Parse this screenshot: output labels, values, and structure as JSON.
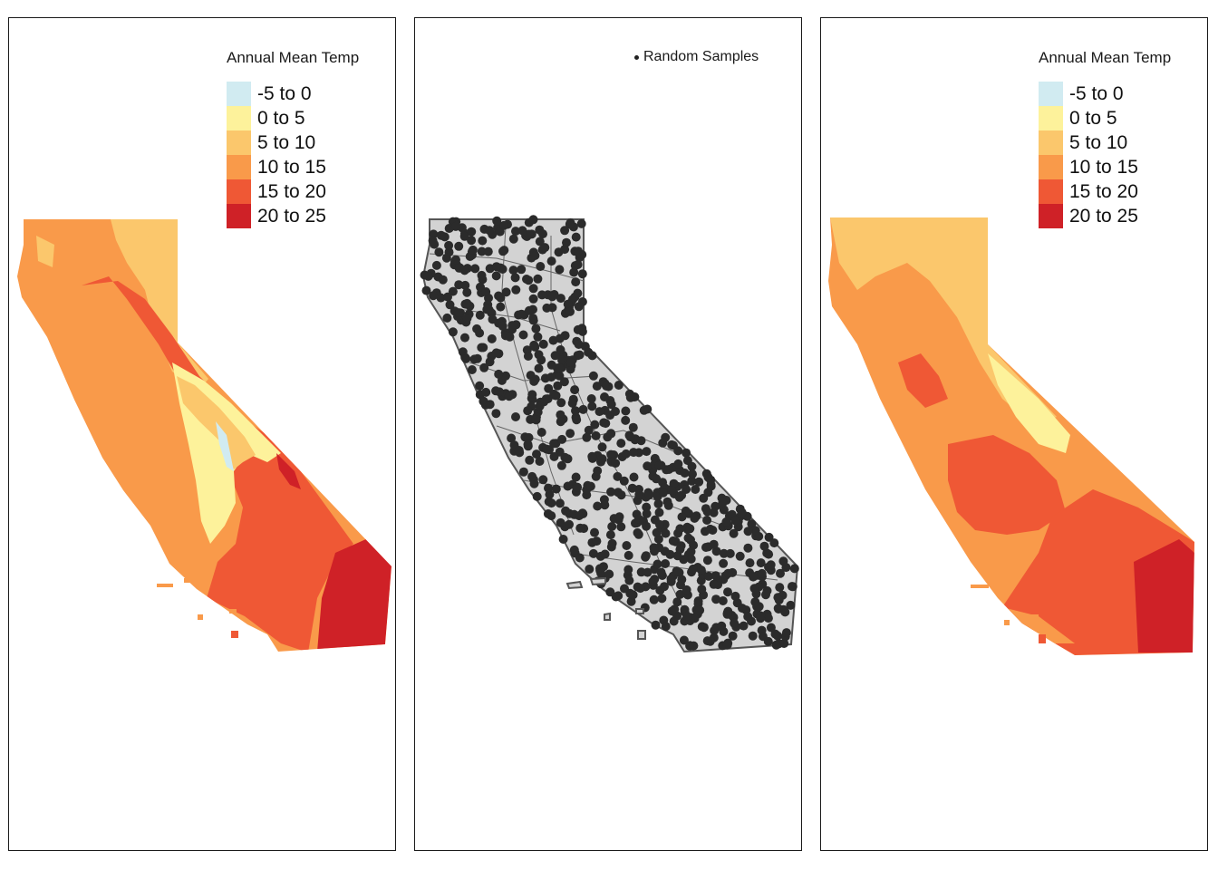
{
  "figure": {
    "panels": [
      {
        "id": "observed",
        "legend_title": "Annual Mean Temp"
      },
      {
        "id": "samples",
        "legend_label": "Random Samples"
      },
      {
        "id": "predicted",
        "legend_title": "Annual Mean Temp"
      }
    ]
  },
  "legend_bins": [
    {
      "label": "-5 to 0",
      "color": "#d1ebf1"
    },
    {
      "label": "0 to 5",
      "color": "#fdf29b"
    },
    {
      "label": "5 to 10",
      "color": "#fbc76c"
    },
    {
      "label": "10 to 15",
      "color": "#f99a4a"
    },
    {
      "label": "15 to 20",
      "color": "#ef5835"
    },
    {
      "label": "20 to 25",
      "color": "#cf2127"
    }
  ],
  "colors": {
    "state_fill": "#d3d3d3",
    "state_outline": "#555555",
    "sample_point": "#2b2b2b",
    "frame": "#1a1a1a"
  }
}
